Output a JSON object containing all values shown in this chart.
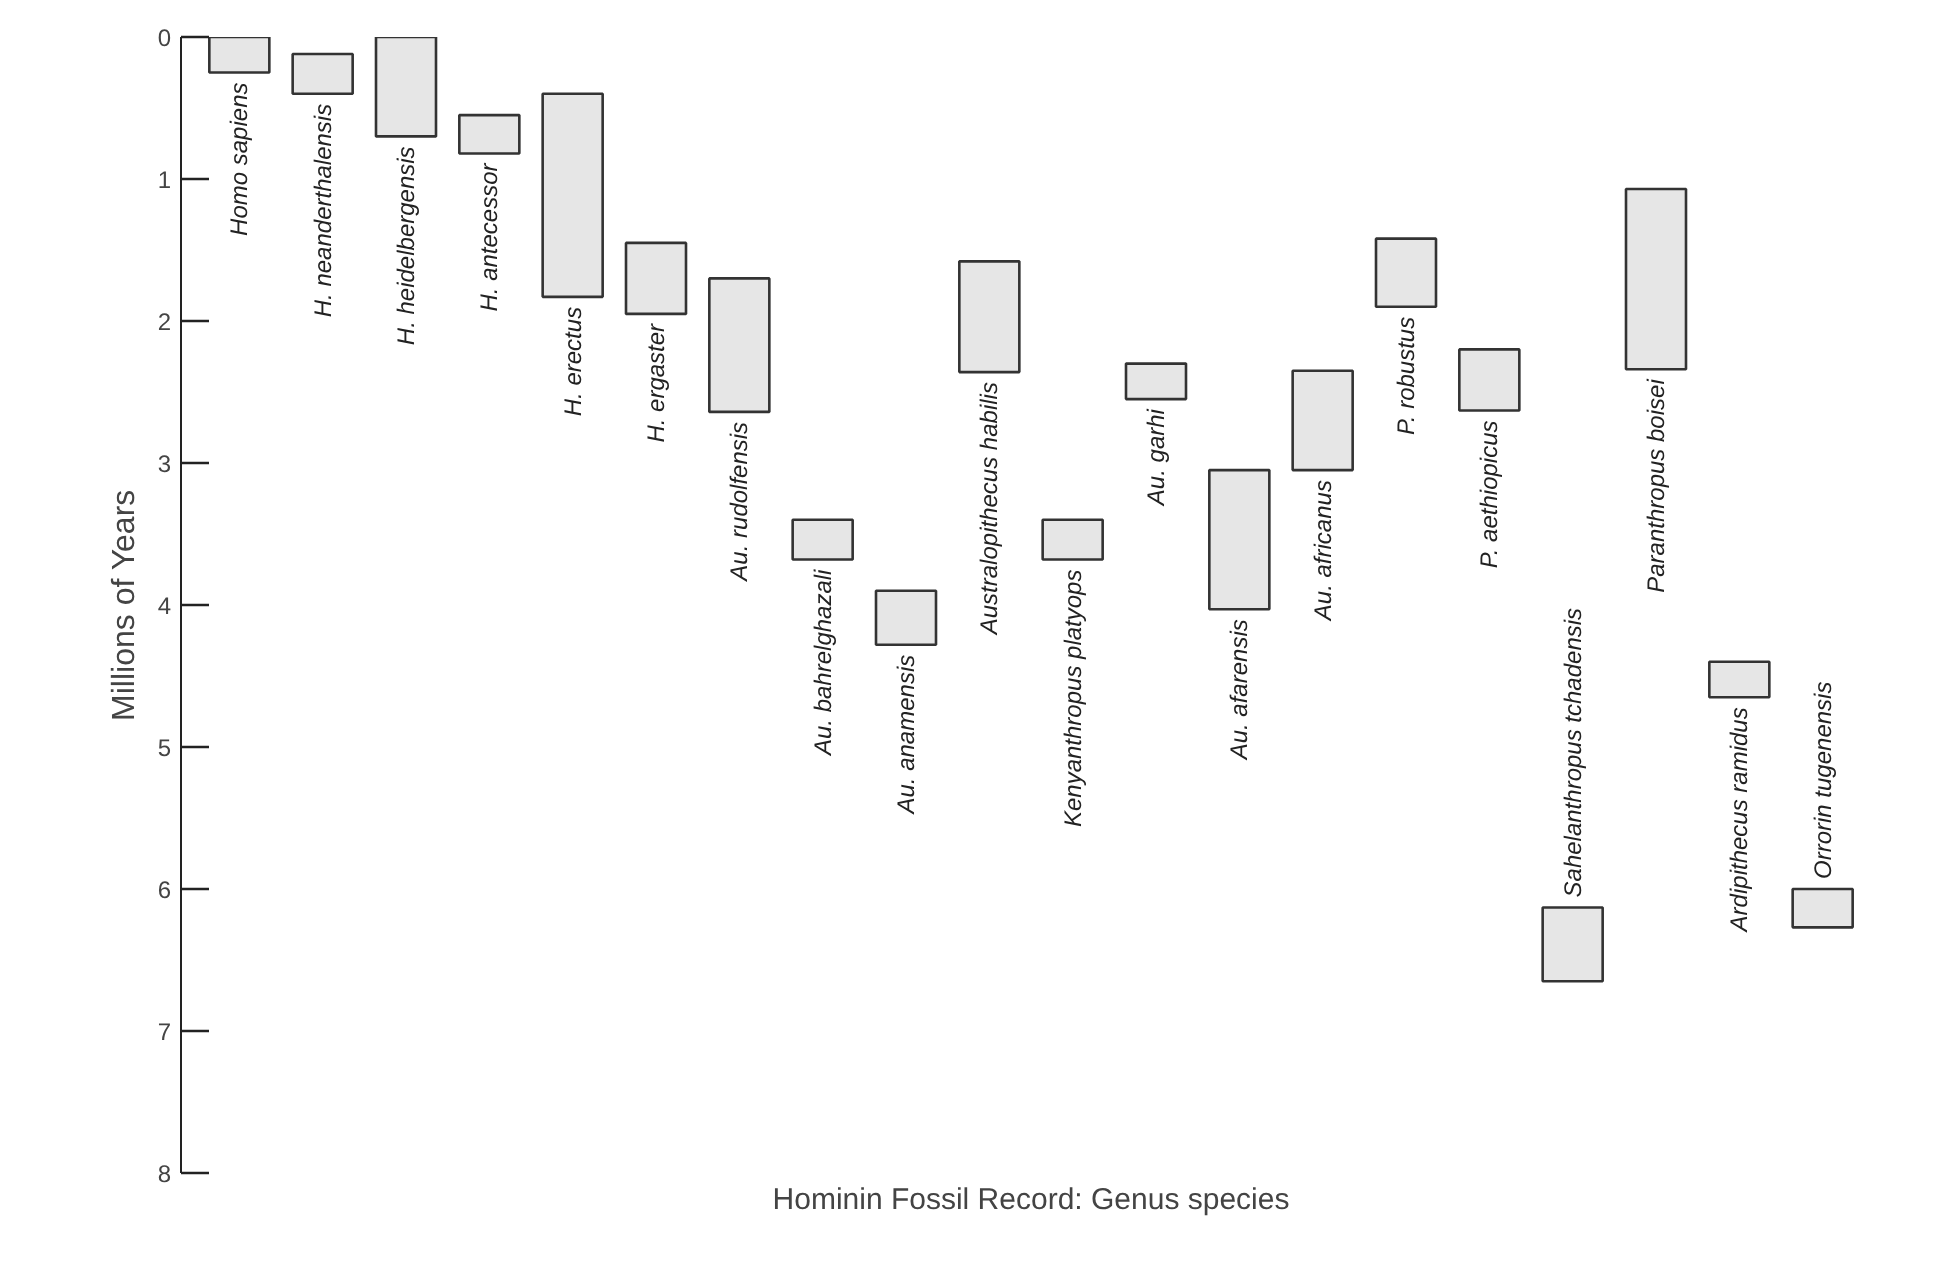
{
  "chart_data": {
    "type": "bar",
    "xlabel": "Hominin Fossil Record: Genus species",
    "ylabel": "Millions of Years",
    "categories": [
      "Homo sapiens",
      "H. neanderthalensis",
      "H. heidelbergensis",
      "H. antecessor",
      "H. erectus",
      "H. ergaster",
      "Au. rudolfensis",
      "Au. bahrelghazali",
      "Au. anamensis",
      "Australopithecus habilis",
      "Kenyanthropus platyops",
      "Au. garhi",
      "Au. afarensis",
      "Au. africanus",
      "P. robustus",
      "P. aethiopicus",
      "Sahelanthropus tchadensis",
      "Paranthropus boisei",
      "Ardipithecus ramidus",
      "Orrorin tugenensis"
    ],
    "base": [
      0,
      0.12,
      0,
      0.55,
      0.4,
      1.45,
      1.7,
      3.4,
      3.9,
      1.58,
      3.4,
      2.3,
      3.05,
      2.35,
      1.42,
      2.2,
      6.13,
      1.07,
      4.4,
      6.0
    ],
    "values": [
      0.25,
      0.28,
      0.7,
      0.27,
      1.43,
      0.5,
      0.94,
      0.28,
      0.38,
      0.78,
      0.28,
      0.25,
      0.98,
      0.7,
      0.48,
      0.43,
      0.52,
      1.27,
      0.25,
      0.27
    ],
    "color": "#e6e6e6",
    "ylim": [
      8,
      0
    ],
    "yticks": [
      0,
      1,
      2,
      3,
      4,
      5,
      6,
      7,
      8
    ],
    "tick_labels": "y"
  }
}
